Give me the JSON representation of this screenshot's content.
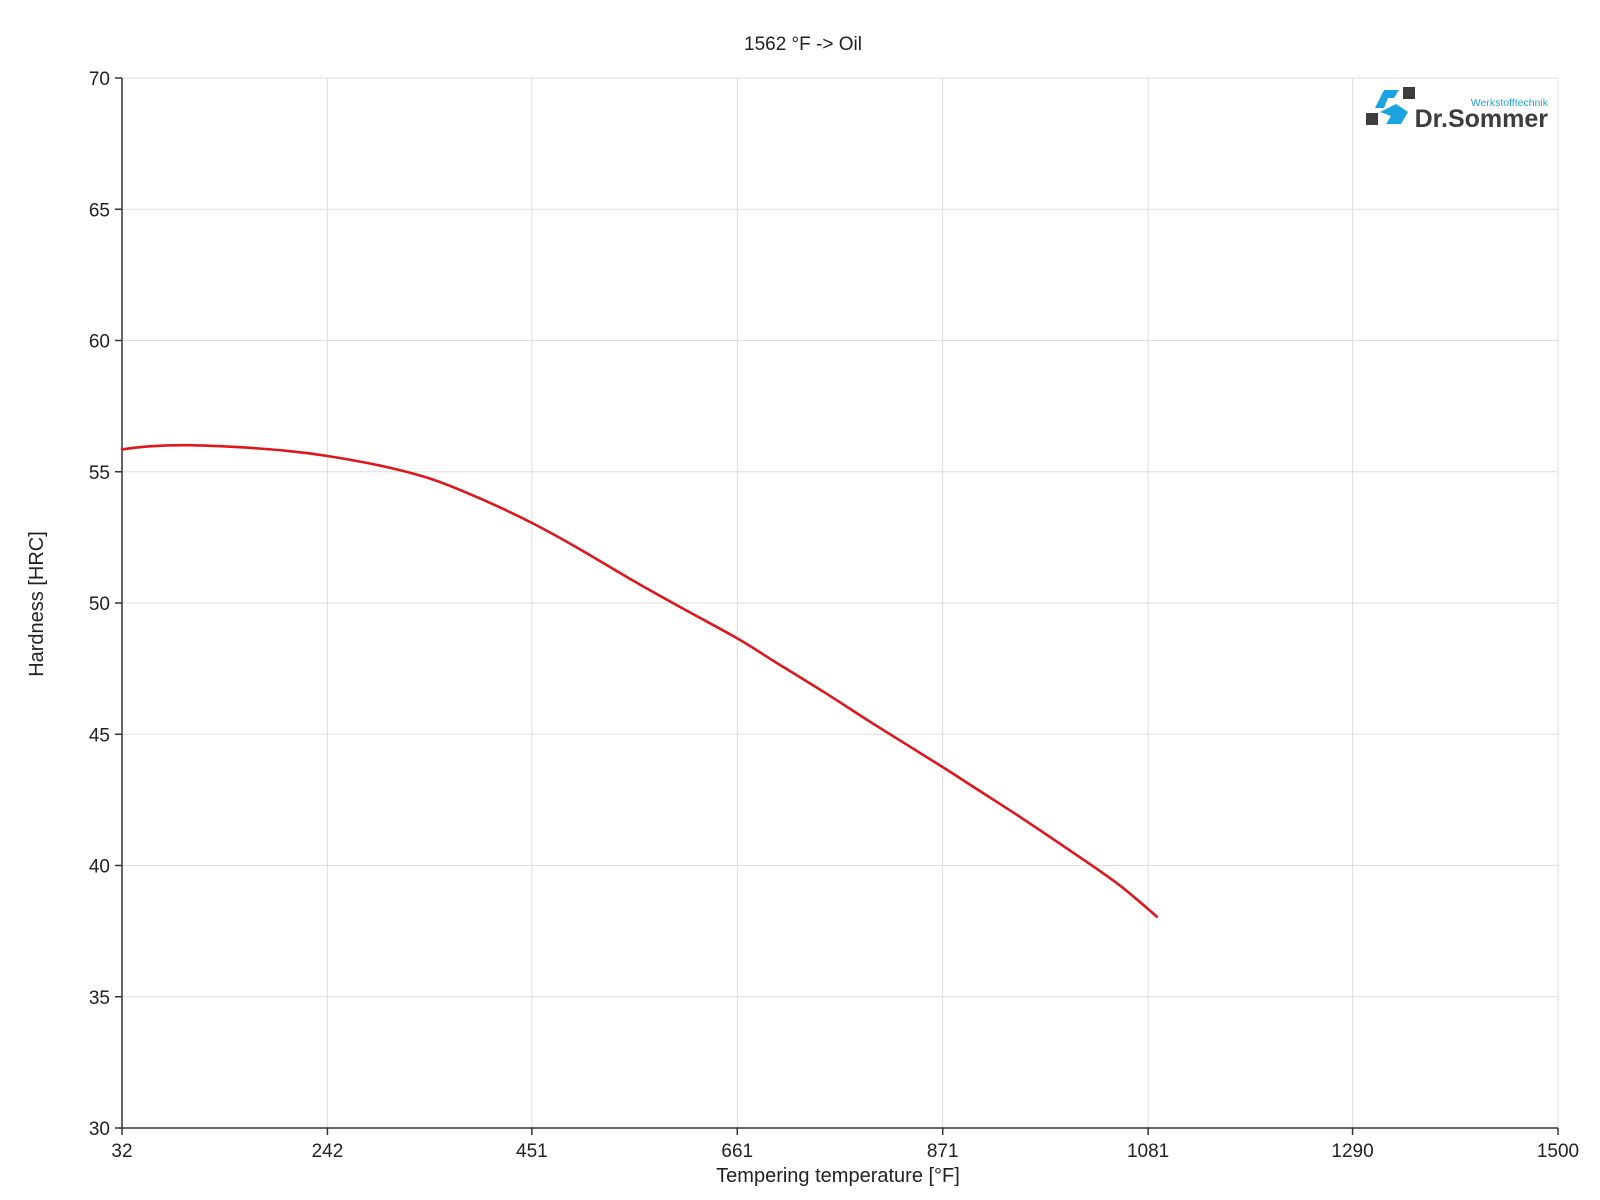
{
  "chart_data": {
    "type": "line",
    "title": "1562 °F -> Oil",
    "xlabel": "Tempering temperature [°F]",
    "ylabel": "Hardness [HRC]",
    "xlim": [
      32,
      1500
    ],
    "ylim": [
      30,
      70
    ],
    "x_ticks": [
      32,
      242,
      451,
      661,
      871,
      1081,
      1290,
      1500
    ],
    "x_tick_labels": [
      "32",
      "242",
      "451",
      "661",
      "871",
      "1081",
      "1290",
      "1500"
    ],
    "y_ticks": [
      30,
      35,
      40,
      45,
      50,
      55,
      60,
      65,
      70
    ],
    "y_tick_labels": [
      "30",
      "35",
      "40",
      "45",
      "50",
      "55",
      "60",
      "65",
      "70"
    ],
    "grid": true,
    "series": [
      {
        "color": "#e0161b",
        "x": [
          32,
          60,
          100,
          150,
          200,
          242,
          300,
          350,
          400,
          451,
          500,
          550,
          600,
          661,
          700,
          750,
          800,
          871,
          900,
          950,
          1000,
          1050,
          1090
        ],
        "y": [
          55.85,
          55.97,
          56.01,
          55.94,
          55.8,
          55.6,
          55.2,
          54.7,
          53.95,
          53.05,
          52.05,
          50.95,
          49.9,
          48.65,
          47.75,
          46.6,
          45.4,
          43.75,
          43.05,
          41.85,
          40.6,
          39.3,
          38.05
        ]
      }
    ]
  },
  "logo": {
    "subtitle": "Werkstofftechnik",
    "name": "Dr.Sommer",
    "blue": "#1ba4e0",
    "dark": "#3d3d3f"
  },
  "colors": {
    "grid": "#dedede",
    "axis": "#333333",
    "series": "#e0161b"
  }
}
